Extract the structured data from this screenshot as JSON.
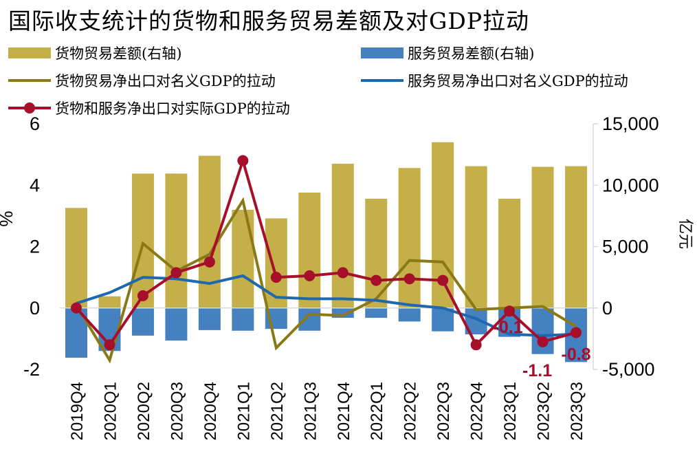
{
  "title": "国际收支统计的货物和服务贸易差额及对GDP拉动",
  "colors": {
    "goods_bar": "#C5AF48",
    "services_bar": "#4581C0",
    "goods_line": "#8A7A17",
    "services_line": "#1F67AE",
    "total_line": "#A50F2A",
    "axis": "#D9D9D9"
  },
  "chart_data": {
    "type": "bar+line",
    "title": "国际收支统计的货物和服务贸易差额及对GDP拉动",
    "categories": [
      "2019Q4",
      "2020Q1",
      "2020Q2",
      "2020Q3",
      "2020Q4",
      "2021Q1",
      "2021Q2",
      "2021Q3",
      "2021Q4",
      "2022Q1",
      "2022Q2",
      "2022Q3",
      "2022Q4",
      "2023Q1",
      "2023Q2",
      "2023Q3"
    ],
    "ylabel_left": "%",
    "ylim_left": [
      -2,
      6
    ],
    "yticks_left": [
      "-2",
      "0",
      "2",
      "4",
      "6"
    ],
    "ylabel_right": "亿元",
    "ylim_right": [
      -5000,
      15000
    ],
    "yticks_right": [
      "-5,000",
      "0",
      "5,000",
      "10,000",
      "15,000"
    ],
    "series": [
      {
        "name": "货物贸易差额(右轴)",
        "type": "bar",
        "axis": "right",
        "values": [
          8150,
          950,
          10950,
          10950,
          12400,
          8000,
          7300,
          9400,
          11750,
          8900,
          11400,
          13500,
          11550,
          8900,
          11500,
          11550
        ]
      },
      {
        "name": "服务贸易差额(右轴)",
        "type": "bar",
        "axis": "right",
        "values": [
          -4050,
          -3500,
          -2250,
          -2650,
          -1800,
          -1850,
          -1700,
          -1850,
          -800,
          -800,
          -1100,
          -1900,
          -2150,
          -2350,
          -3750,
          -4400
        ]
      },
      {
        "name": "货物贸易净出口对名义GDP的拉动",
        "type": "line",
        "axis": "left",
        "values": [
          0.1,
          -1.7,
          2.1,
          1.2,
          1.75,
          3.5,
          -1.3,
          -0.2,
          -0.25,
          0.3,
          1.55,
          1.5,
          -0.05,
          0.0,
          0.05,
          -0.6
        ]
      },
      {
        "name": "服务贸易净出口对名义GDP的拉动",
        "type": "line",
        "axis": "left",
        "values": [
          0.15,
          0.5,
          1.0,
          0.95,
          0.8,
          1.05,
          0.35,
          0.3,
          0.3,
          0.25,
          0.1,
          0.0,
          -0.35,
          -0.85,
          -0.9,
          -0.85
        ]
      },
      {
        "name": "货物和服务净出口对实际GDP的拉动",
        "type": "line-marker",
        "axis": "left",
        "values": [
          0.0,
          -1.2,
          0.4,
          1.15,
          1.5,
          4.8,
          1.0,
          1.05,
          1.15,
          0.9,
          0.95,
          0.9,
          -1.2,
          -0.1,
          -1.1,
          -0.8
        ]
      }
    ],
    "annotations": [
      {
        "category": "2023Q1",
        "text": "-0.1"
      },
      {
        "category": "2023Q2",
        "text": "-1.1"
      },
      {
        "category": "2023Q3",
        "text": "-0.8"
      }
    ],
    "grid": false
  }
}
